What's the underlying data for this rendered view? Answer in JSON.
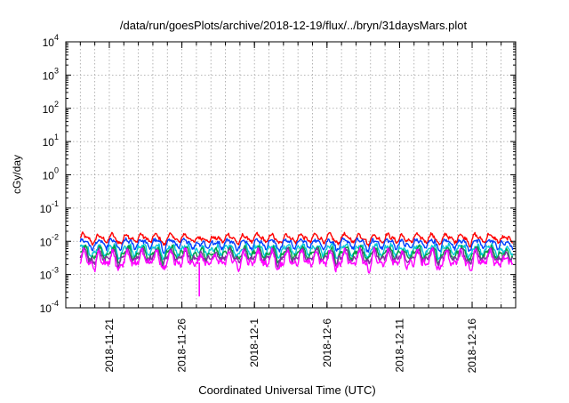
{
  "chart_data": {
    "type": "line",
    "title": "/data/run/goesPlots/archive/2018-12-19/flux/../bryn/31daysMars.plot",
    "xlabel": "Coordinated Universal Time (UTC)",
    "ylabel": "cGy/day",
    "yscale": "log",
    "ylim": [
      0.0001,
      10000
    ],
    "grid": true,
    "x_range_days": [
      0,
      31
    ],
    "y_ticks": [
      {
        "base": "10",
        "exp": "-4",
        "value": 0.0001
      },
      {
        "base": "10",
        "exp": "-3",
        "value": 0.001
      },
      {
        "base": "10",
        "exp": "-2",
        "value": 0.01
      },
      {
        "base": "10",
        "exp": "-1",
        "value": 0.1
      },
      {
        "base": "10",
        "exp": "0",
        "value": 1
      },
      {
        "base": "10",
        "exp": "1",
        "value": 10
      },
      {
        "base": "10",
        "exp": "2",
        "value": 100
      },
      {
        "base": "10",
        "exp": "3",
        "value": 1000
      },
      {
        "base": "10",
        "exp": "4",
        "value": 10000
      }
    ],
    "x_ticks": [
      {
        "label": "2018-11-21",
        "day": 3
      },
      {
        "label": "2018-11-26",
        "day": 8
      },
      {
        "label": "2018-12-1",
        "day": 13
      },
      {
        "label": "2018-12-6",
        "day": 18
      },
      {
        "label": "2018-12-11",
        "day": 23
      },
      {
        "label": "2018-12-16",
        "day": 28
      }
    ],
    "series": [
      {
        "name": "red",
        "color": "#ff0000",
        "baseline": 0.0125,
        "amplitude": 0.11
      },
      {
        "name": "blue",
        "color": "#0040ff",
        "baseline": 0.0088,
        "amplitude": 0.12
      },
      {
        "name": "cyan",
        "color": "#00c8d8",
        "baseline": 0.0058,
        "amplitude": 0.14
      },
      {
        "name": "green",
        "color": "#00a040",
        "baseline": 0.0045,
        "amplitude": 0.15
      },
      {
        "name": "purple",
        "color": "#8030a0",
        "baseline": 0.0036,
        "amplitude": 0.15
      },
      {
        "name": "magenta",
        "color": "#ff00ff",
        "baseline": 0.0029,
        "amplitude": 0.2
      }
    ],
    "annotations": [
      {
        "series": "magenta",
        "day": 9.2,
        "value": 0.00022,
        "note": "dip"
      }
    ]
  }
}
